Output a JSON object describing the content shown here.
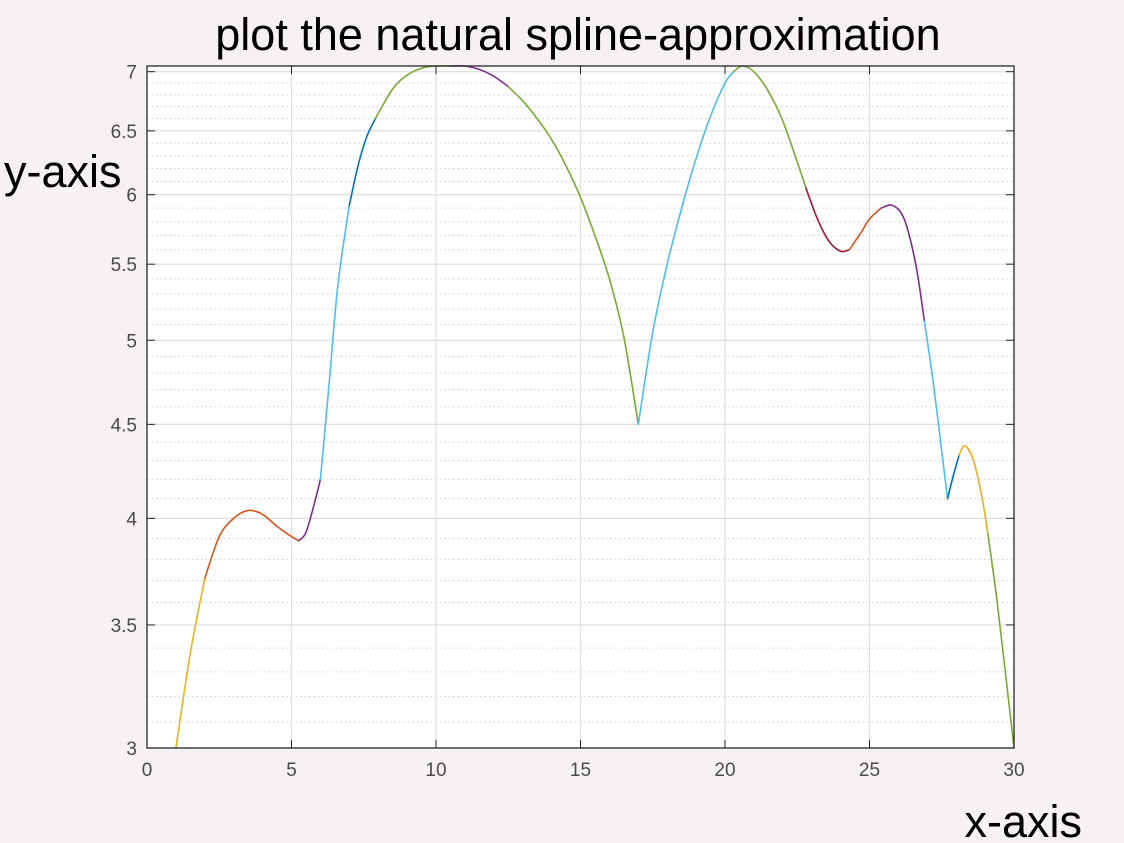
{
  "chart_data": {
    "type": "line",
    "title": "plot the natural spline-approximation",
    "xlabel": "x-axis",
    "ylabel": "y-axis",
    "xlim": [
      0,
      30
    ],
    "ylim": [
      3,
      7.05
    ],
    "yscale": "log",
    "grid": true,
    "minor_grid": true,
    "legend": "none",
    "x_ticks": [
      0,
      5,
      10,
      15,
      20,
      25,
      30
    ],
    "x_tick_labels": [
      "0",
      "5",
      "10",
      "15",
      "20",
      "25",
      "30"
    ],
    "y_ticks": [
      3,
      3.5,
      4,
      4.5,
      5,
      5.5,
      6,
      6.5,
      7
    ],
    "y_tick_labels": [
      "3",
      "3.5",
      "4",
      "4.5",
      "5",
      "5.5",
      "6",
      "6.5",
      "7"
    ],
    "colors": {
      "background": "#f5f1f5",
      "axes_background": "#ffffff",
      "grid": "#dedede",
      "axis": "#262626"
    },
    "series": [
      {
        "color": "#edb120",
        "points": [
          [
            1.0,
            3.0
          ],
          [
            1.5,
            3.38
          ],
          [
            2.0,
            3.71
          ]
        ]
      },
      {
        "color": "#d95319",
        "points": [
          [
            2.0,
            3.71
          ],
          [
            2.5,
            3.91
          ],
          [
            3.0,
            4.0
          ],
          [
            3.5,
            4.04
          ],
          [
            4.0,
            4.02
          ],
          [
            4.5,
            3.96
          ],
          [
            5.0,
            3.91
          ],
          [
            5.25,
            3.89
          ]
        ]
      },
      {
        "color": "#7e2f8e",
        "points": [
          [
            5.25,
            3.89
          ],
          [
            5.5,
            3.93
          ],
          [
            5.8,
            4.08
          ],
          [
            6.0,
            4.2
          ]
        ]
      },
      {
        "color": "#4dbeee",
        "points": [
          [
            6.0,
            4.2
          ],
          [
            6.3,
            4.73
          ],
          [
            6.6,
            5.35
          ],
          [
            7.0,
            5.92
          ]
        ]
      },
      {
        "color": "#0072bd",
        "points": [
          [
            7.0,
            5.92
          ],
          [
            7.3,
            6.22
          ],
          [
            7.6,
            6.45
          ],
          [
            7.9,
            6.6
          ]
        ]
      },
      {
        "color": "#77ac30",
        "points": [
          [
            7.9,
            6.6
          ],
          [
            8.5,
            6.85
          ],
          [
            9.0,
            6.97
          ],
          [
            9.5,
            7.03
          ],
          [
            10.0,
            7.05
          ],
          [
            10.5,
            7.05
          ]
        ]
      },
      {
        "color": "#7e2f8e",
        "points": [
          [
            10.5,
            7.05
          ],
          [
            11.0,
            7.05
          ],
          [
            11.5,
            7.02
          ],
          [
            12.0,
            6.96
          ],
          [
            12.5,
            6.87
          ]
        ]
      },
      {
        "color": "#77ac30",
        "points": [
          [
            12.5,
            6.87
          ],
          [
            13.0,
            6.75
          ],
          [
            13.5,
            6.6
          ],
          [
            14.0,
            6.43
          ],
          [
            14.5,
            6.22
          ],
          [
            15.0,
            5.98
          ],
          [
            15.5,
            5.7
          ],
          [
            16.0,
            5.4
          ],
          [
            16.5,
            5.02
          ],
          [
            17.0,
            4.5
          ]
        ]
      },
      {
        "color": "#4dbeee",
        "points": [
          [
            17.0,
            4.5
          ],
          [
            17.5,
            5.05
          ],
          [
            18.0,
            5.5
          ],
          [
            18.5,
            5.9
          ],
          [
            19.0,
            6.28
          ],
          [
            19.5,
            6.62
          ],
          [
            20.0,
            6.9
          ],
          [
            20.3,
            7.0
          ]
        ]
      },
      {
        "color": "#77ac30",
        "points": [
          [
            20.3,
            7.0
          ],
          [
            20.6,
            7.05
          ],
          [
            21.0,
            7.0
          ],
          [
            21.5,
            6.83
          ],
          [
            22.0,
            6.58
          ],
          [
            22.5,
            6.25
          ],
          [
            22.8,
            6.05
          ]
        ]
      },
      {
        "color": "#a2142f",
        "points": [
          [
            22.8,
            6.05
          ],
          [
            23.2,
            5.82
          ],
          [
            23.6,
            5.66
          ],
          [
            24.0,
            5.59
          ],
          [
            24.3,
            5.6
          ]
        ]
      },
      {
        "color": "#d95319",
        "points": [
          [
            24.3,
            5.6
          ],
          [
            24.7,
            5.72
          ],
          [
            25.0,
            5.82
          ],
          [
            25.4,
            5.9
          ]
        ]
      },
      {
        "color": "#7e2f8e",
        "points": [
          [
            25.4,
            5.9
          ],
          [
            25.8,
            5.92
          ],
          [
            26.2,
            5.82
          ],
          [
            26.6,
            5.5
          ],
          [
            26.9,
            5.12
          ]
        ]
      },
      {
        "color": "#4dbeee",
        "points": [
          [
            26.9,
            5.12
          ],
          [
            27.2,
            4.75
          ],
          [
            27.5,
            4.35
          ],
          [
            27.7,
            4.1
          ]
        ]
      },
      {
        "color": "#0072bd",
        "points": [
          [
            27.7,
            4.1
          ],
          [
            27.9,
            4.22
          ],
          [
            28.1,
            4.33
          ]
        ]
      },
      {
        "color": "#edb120",
        "points": [
          [
            28.1,
            4.33
          ],
          [
            28.3,
            4.38
          ],
          [
            28.6,
            4.3
          ],
          [
            28.9,
            4.1
          ],
          [
            29.1,
            3.92
          ]
        ]
      },
      {
        "color": "#77ac30",
        "points": [
          [
            29.1,
            3.92
          ],
          [
            29.4,
            3.62
          ],
          [
            29.7,
            3.3
          ],
          [
            30.0,
            3.0
          ]
        ]
      }
    ]
  }
}
